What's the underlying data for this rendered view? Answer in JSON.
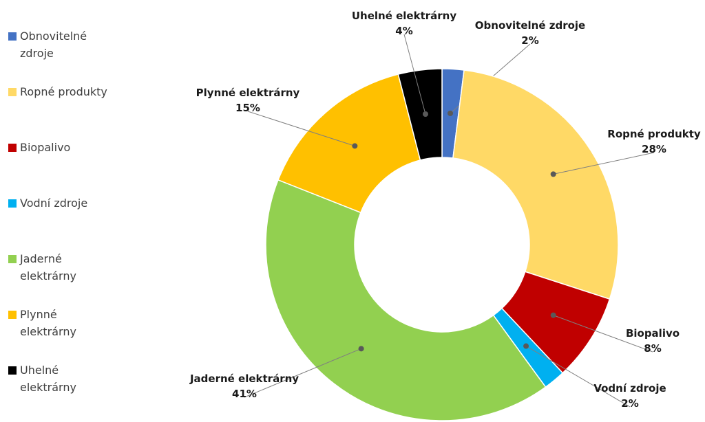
{
  "chart_data": {
    "type": "pie",
    "categories": [
      "Obnovitelné zdroje",
      "Ropné produkty",
      "Biopalivo",
      "Vodní zdroje",
      "Jaderné elektrárny",
      "Plynné elektrárny",
      "Uhelné elektrárny"
    ],
    "values": [
      2,
      28,
      8,
      2,
      41,
      15,
      4
    ],
    "value_labels": [
      "2%",
      "28%",
      "8%",
      "2%",
      "41%",
      "15%",
      "4%"
    ],
    "colors": [
      "#4472c4",
      "#ffd966",
      "#c00000",
      "#00b0f0",
      "#92d050",
      "#ffc000",
      "#000000"
    ],
    "legend": "left"
  }
}
